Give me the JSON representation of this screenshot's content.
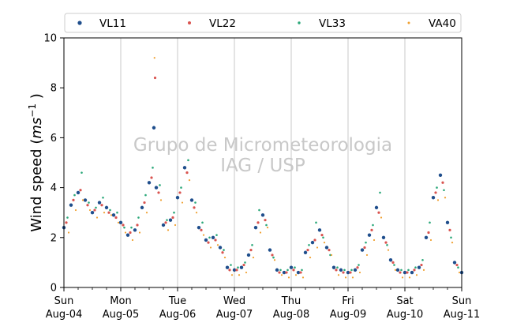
{
  "chart_data": {
    "type": "scatter",
    "title": "",
    "ylabel": "Wind speed (ms⁻¹ )",
    "ylabel_parts": {
      "prefix": "Wind speed (",
      "unit": "ms",
      "exponent": "−1",
      "suffix": " )"
    },
    "xlabel": "",
    "xlim": [
      "2019-08-04 00:00",
      "2019-08-11 00:00"
    ],
    "ylim": [
      0,
      10
    ],
    "yticks": [
      0,
      2,
      4,
      6,
      8,
      10
    ],
    "xticks": [
      {
        "day": "Sun",
        "date": "Aug-04",
        "x": "2019-08-04 00:00"
      },
      {
        "day": "Mon",
        "date": "Aug-05",
        "x": "2019-08-05 00:00"
      },
      {
        "day": "Tue",
        "date": "Aug-06",
        "x": "2019-08-06 00:00"
      },
      {
        "day": "Wed",
        "date": "Aug-07",
        "x": "2019-08-07 00:00"
      },
      {
        "day": "Thu",
        "date": "Aug-08",
        "x": "2019-08-08 00:00"
      },
      {
        "day": "Fri",
        "date": "Aug-09",
        "x": "2019-08-09 00:00"
      },
      {
        "day": "Sat",
        "date": "Aug-10",
        "x": "2019-08-10 00:00"
      },
      {
        "day": "Sun",
        "date": "Aug-11",
        "x": "2019-08-11 00:00"
      }
    ],
    "grid": "vertical",
    "legend_position": "top",
    "watermark": [
      "Grupo de Micrometeorologia",
      "IAG / USP"
    ],
    "series": [
      {
        "name": "VL11",
        "color": "#1f4e8c",
        "x": [
          "2019-08-04 00:00",
          "2019-08-04 03:00",
          "2019-08-04 06:00",
          "2019-08-04 09:00",
          "2019-08-04 12:00",
          "2019-08-04 15:00",
          "2019-08-04 18:00",
          "2019-08-04 21:00",
          "2019-08-05 00:00",
          "2019-08-05 03:00",
          "2019-08-05 06:00",
          "2019-08-05 09:00",
          "2019-08-05 12:00",
          "2019-08-05 14:00",
          "2019-08-05 15:00",
          "2019-08-05 18:00",
          "2019-08-05 21:00",
          "2019-08-06 00:00",
          "2019-08-06 03:00",
          "2019-08-06 06:00",
          "2019-08-06 09:00",
          "2019-08-06 12:00",
          "2019-08-06 15:00",
          "2019-08-06 18:00",
          "2019-08-06 21:00",
          "2019-08-07 00:00",
          "2019-08-07 03:00",
          "2019-08-07 06:00",
          "2019-08-07 09:00",
          "2019-08-07 12:00",
          "2019-08-07 15:00",
          "2019-08-07 18:00",
          "2019-08-07 21:00",
          "2019-08-08 00:00",
          "2019-08-08 03:00",
          "2019-08-08 06:00",
          "2019-08-08 09:00",
          "2019-08-08 12:00",
          "2019-08-08 15:00",
          "2019-08-08 18:00",
          "2019-08-08 21:00",
          "2019-08-09 00:00",
          "2019-08-09 03:00",
          "2019-08-09 06:00",
          "2019-08-09 09:00",
          "2019-08-09 12:00",
          "2019-08-09 15:00",
          "2019-08-09 18:00",
          "2019-08-09 21:00",
          "2019-08-10 00:00",
          "2019-08-10 03:00",
          "2019-08-10 06:00",
          "2019-08-10 09:00",
          "2019-08-10 12:00",
          "2019-08-10 15:00",
          "2019-08-10 18:00",
          "2019-08-10 21:00",
          "2019-08-11 00:00"
        ],
        "y": [
          2.4,
          3.3,
          3.8,
          3.5,
          3.0,
          3.4,
          3.2,
          2.9,
          2.6,
          2.1,
          2.3,
          3.2,
          4.2,
          6.4,
          4.0,
          2.5,
          2.7,
          3.6,
          4.8,
          3.5,
          2.4,
          1.9,
          2.0,
          1.6,
          0.8,
          0.7,
          0.8,
          1.3,
          2.4,
          2.9,
          1.5,
          0.7,
          0.6,
          0.8,
          0.6,
          1.4,
          1.8,
          2.3,
          1.6,
          0.8,
          0.7,
          0.6,
          0.7,
          1.5,
          2.1,
          3.2,
          2.0,
          1.1,
          0.7,
          0.6,
          0.6,
          0.8,
          2.0,
          3.6,
          4.5,
          2.6,
          1.0,
          0.6
        ]
      },
      {
        "name": "VL22",
        "color": "#d9534f",
        "x": [
          "2019-08-04 01:00",
          "2019-08-04 04:00",
          "2019-08-04 07:00",
          "2019-08-04 10:00",
          "2019-08-04 13:00",
          "2019-08-04 16:00",
          "2019-08-04 19:00",
          "2019-08-04 22:00",
          "2019-08-05 01:00",
          "2019-08-05 04:00",
          "2019-08-05 07:00",
          "2019-08-05 10:00",
          "2019-08-05 13:00",
          "2019-08-05 14:30",
          "2019-08-05 16:00",
          "2019-08-05 19:00",
          "2019-08-05 22:00",
          "2019-08-06 01:00",
          "2019-08-06 04:00",
          "2019-08-06 07:00",
          "2019-08-06 10:00",
          "2019-08-06 13:00",
          "2019-08-06 16:00",
          "2019-08-06 19:00",
          "2019-08-06 22:00",
          "2019-08-07 01:00",
          "2019-08-07 04:00",
          "2019-08-07 07:00",
          "2019-08-07 10:00",
          "2019-08-07 13:00",
          "2019-08-07 16:00",
          "2019-08-07 19:00",
          "2019-08-07 22:00",
          "2019-08-08 01:00",
          "2019-08-08 04:00",
          "2019-08-08 07:00",
          "2019-08-08 10:00",
          "2019-08-08 13:00",
          "2019-08-08 16:00",
          "2019-08-08 19:00",
          "2019-08-08 22:00",
          "2019-08-09 01:00",
          "2019-08-09 04:00",
          "2019-08-09 07:00",
          "2019-08-09 10:00",
          "2019-08-09 13:00",
          "2019-08-09 16:00",
          "2019-08-09 19:00",
          "2019-08-09 22:00",
          "2019-08-10 01:00",
          "2019-08-10 04:00",
          "2019-08-10 07:00",
          "2019-08-10 10:00",
          "2019-08-10 13:00",
          "2019-08-10 16:00",
          "2019-08-10 19:00",
          "2019-08-10 22:00"
        ],
        "y": [
          2.6,
          3.5,
          3.9,
          3.3,
          3.1,
          3.3,
          3.0,
          2.8,
          2.5,
          2.2,
          2.5,
          3.4,
          4.4,
          8.4,
          3.8,
          2.6,
          2.8,
          3.8,
          4.6,
          3.2,
          2.3,
          1.8,
          1.9,
          1.4,
          0.7,
          0.7,
          0.9,
          1.5,
          2.6,
          2.7,
          1.3,
          0.6,
          0.6,
          0.7,
          0.6,
          1.5,
          1.9,
          2.1,
          1.5,
          0.7,
          0.6,
          0.6,
          0.8,
          1.6,
          2.3,
          3.0,
          1.8,
          1.0,
          0.6,
          0.6,
          0.7,
          0.9,
          2.2,
          3.8,
          4.2,
          2.3,
          0.9
        ]
      },
      {
        "name": "VL33",
        "color": "#2ca87a",
        "x": [
          "2019-08-04 01:30",
          "2019-08-04 04:30",
          "2019-08-04 07:30",
          "2019-08-04 10:30",
          "2019-08-04 13:30",
          "2019-08-04 16:30",
          "2019-08-04 19:30",
          "2019-08-04 22:30",
          "2019-08-05 01:30",
          "2019-08-05 04:30",
          "2019-08-05 07:30",
          "2019-08-05 10:30",
          "2019-08-05 13:30",
          "2019-08-05 16:30",
          "2019-08-05 19:30",
          "2019-08-05 22:30",
          "2019-08-06 01:30",
          "2019-08-06 04:30",
          "2019-08-06 07:30",
          "2019-08-06 10:30",
          "2019-08-06 13:30",
          "2019-08-06 16:30",
          "2019-08-06 19:30",
          "2019-08-06 22:30",
          "2019-08-07 01:30",
          "2019-08-07 04:30",
          "2019-08-07 07:30",
          "2019-08-07 10:30",
          "2019-08-07 13:30",
          "2019-08-07 16:30",
          "2019-08-07 19:30",
          "2019-08-07 22:30",
          "2019-08-08 01:30",
          "2019-08-08 04:30",
          "2019-08-08 07:30",
          "2019-08-08 10:30",
          "2019-08-08 13:30",
          "2019-08-08 16:30",
          "2019-08-08 19:30",
          "2019-08-08 22:30",
          "2019-08-09 01:30",
          "2019-08-09 04:30",
          "2019-08-09 07:30",
          "2019-08-09 10:30",
          "2019-08-09 13:30",
          "2019-08-09 16:30",
          "2019-08-09 19:30",
          "2019-08-09 22:30",
          "2019-08-10 01:30",
          "2019-08-10 04:30",
          "2019-08-10 07:30",
          "2019-08-10 10:30",
          "2019-08-10 13:30",
          "2019-08-10 16:30",
          "2019-08-10 19:30",
          "2019-08-10 22:30"
        ],
        "y": [
          2.8,
          3.7,
          4.6,
          3.4,
          3.2,
          3.6,
          3.1,
          3.0,
          2.4,
          2.4,
          2.8,
          3.7,
          4.8,
          4.1,
          2.7,
          3.0,
          4.0,
          5.1,
          3.4,
          2.6,
          2.0,
          2.1,
          1.5,
          0.9,
          0.8,
          1.0,
          1.7,
          3.1,
          2.5,
          1.2,
          0.7,
          0.7,
          0.8,
          0.7,
          1.7,
          2.6,
          2.0,
          1.3,
          0.8,
          0.7,
          0.7,
          0.9,
          1.8,
          2.5,
          3.8,
          1.7,
          0.9,
          0.7,
          0.7,
          0.8,
          1.1,
          2.6,
          4.0,
          3.9,
          2.0,
          0.8
        ]
      },
      {
        "name": "VA40",
        "color": "#f0a030",
        "x": [
          "2019-08-04 02:00",
          "2019-08-04 05:00",
          "2019-08-04 08:00",
          "2019-08-04 11:00",
          "2019-08-04 14:00",
          "2019-08-04 17:00",
          "2019-08-04 20:00",
          "2019-08-04 23:00",
          "2019-08-05 02:00",
          "2019-08-05 05:00",
          "2019-08-05 08:00",
          "2019-08-05 11:00",
          "2019-08-05 14:15",
          "2019-08-05 17:00",
          "2019-08-05 20:00",
          "2019-08-05 23:00",
          "2019-08-06 02:00",
          "2019-08-06 05:00",
          "2019-08-06 08:00",
          "2019-08-06 11:00",
          "2019-08-06 14:00",
          "2019-08-06 17:00",
          "2019-08-06 20:00",
          "2019-08-06 23:00",
          "2019-08-07 02:00",
          "2019-08-07 05:00",
          "2019-08-07 08:00",
          "2019-08-07 11:00",
          "2019-08-07 14:00",
          "2019-08-07 17:00",
          "2019-08-07 20:00",
          "2019-08-07 23:00",
          "2019-08-08 02:00",
          "2019-08-08 05:00",
          "2019-08-08 08:00",
          "2019-08-08 11:00",
          "2019-08-08 14:00",
          "2019-08-08 17:00",
          "2019-08-08 20:00",
          "2019-08-08 23:00",
          "2019-08-09 02:00",
          "2019-08-09 05:00",
          "2019-08-09 08:00",
          "2019-08-09 11:00",
          "2019-08-09 14:00",
          "2019-08-09 17:00",
          "2019-08-09 20:00",
          "2019-08-09 23:00",
          "2019-08-10 02:00",
          "2019-08-10 05:00",
          "2019-08-10 08:00",
          "2019-08-10 11:00",
          "2019-08-10 14:00",
          "2019-08-10 17:00",
          "2019-08-10 20:00",
          "2019-08-10 23:00"
        ],
        "y": [
          2.2,
          3.1,
          3.5,
          3.1,
          2.8,
          3.0,
          2.9,
          2.6,
          2.2,
          1.9,
          2.2,
          3.0,
          9.2,
          3.5,
          2.3,
          2.5,
          3.4,
          4.3,
          3.0,
          2.1,
          1.6,
          1.7,
          1.2,
          0.5,
          0.5,
          0.6,
          1.2,
          2.2,
          2.4,
          1.1,
          0.5,
          0.4,
          0.5,
          0.4,
          1.2,
          1.6,
          1.8,
          1.3,
          0.5,
          0.4,
          0.4,
          0.6,
          1.3,
          1.9,
          2.8,
          1.5,
          0.7,
          0.4,
          0.4,
          0.5,
          0.7,
          1.9,
          3.5,
          3.6,
          1.8,
          0.6
        ]
      }
    ]
  }
}
